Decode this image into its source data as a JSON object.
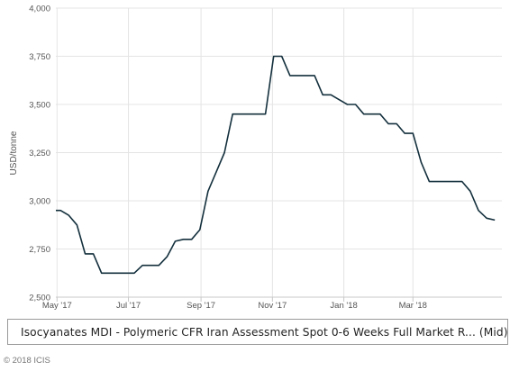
{
  "chart_data": {
    "type": "line",
    "title": "",
    "ylabel": "USD/tonne",
    "xlabel": "",
    "ylim": [
      2500,
      4000
    ],
    "yticks": [
      "2,500",
      "2,750",
      "3,000",
      "3,250",
      "3,500",
      "3,750",
      "4,000"
    ],
    "ytick_values": [
      2500,
      2750,
      3000,
      3250,
      3500,
      3750,
      4000
    ],
    "xticks": [
      "May '17",
      "Jul '17",
      "Sep '17",
      "Nov '17",
      "Jan '18",
      "Mar '18"
    ],
    "xtick_dates": [
      "2017-05-01",
      "2017-07-01",
      "2017-09-01",
      "2017-11-01",
      "2018-01-01",
      "2018-03-01"
    ],
    "xlim": [
      "2017-04-30",
      "2018-05-16"
    ],
    "grid": true,
    "series": [
      {
        "name": "Isocyanates MDI - Polymeric CFR Iran Assessment Spot 0-6 Weeks Full Market R... (Mid)",
        "color": "#14303d",
        "points": [
          [
            "2017-04-30",
            2950
          ],
          [
            "2017-05-04",
            2950
          ],
          [
            "2017-05-11",
            2925
          ],
          [
            "2017-05-18",
            2875
          ],
          [
            "2017-05-25",
            2725
          ],
          [
            "2017-06-01",
            2725
          ],
          [
            "2017-06-08",
            2625
          ],
          [
            "2017-06-15",
            2625
          ],
          [
            "2017-06-22",
            2625
          ],
          [
            "2017-06-29",
            2625
          ],
          [
            "2017-07-06",
            2625
          ],
          [
            "2017-07-13",
            2665
          ],
          [
            "2017-07-20",
            2665
          ],
          [
            "2017-07-27",
            2665
          ],
          [
            "2017-08-03",
            2710
          ],
          [
            "2017-08-10",
            2790
          ],
          [
            "2017-08-17",
            2800
          ],
          [
            "2017-08-24",
            2800
          ],
          [
            "2017-08-31",
            2850
          ],
          [
            "2017-09-07",
            3050
          ],
          [
            "2017-09-14",
            3150
          ],
          [
            "2017-09-21",
            3250
          ],
          [
            "2017-09-28",
            3450
          ],
          [
            "2017-10-05",
            3450
          ],
          [
            "2017-10-12",
            3450
          ],
          [
            "2017-10-19",
            3450
          ],
          [
            "2017-10-26",
            3450
          ],
          [
            "2017-11-02",
            3750
          ],
          [
            "2017-11-09",
            3750
          ],
          [
            "2017-11-16",
            3650
          ],
          [
            "2017-11-23",
            3650
          ],
          [
            "2017-11-30",
            3650
          ],
          [
            "2017-12-07",
            3650
          ],
          [
            "2017-12-14",
            3550
          ],
          [
            "2017-12-21",
            3550
          ],
          [
            "2017-12-28",
            3525
          ],
          [
            "2018-01-04",
            3500
          ],
          [
            "2018-01-11",
            3500
          ],
          [
            "2018-01-18",
            3450
          ],
          [
            "2018-01-25",
            3450
          ],
          [
            "2018-02-01",
            3450
          ],
          [
            "2018-02-08",
            3400
          ],
          [
            "2018-02-15",
            3400
          ],
          [
            "2018-02-22",
            3350
          ],
          [
            "2018-03-01",
            3350
          ],
          [
            "2018-03-08",
            3200
          ],
          [
            "2018-03-15",
            3100
          ],
          [
            "2018-03-22",
            3100
          ],
          [
            "2018-03-29",
            3100
          ],
          [
            "2018-04-05",
            3100
          ],
          [
            "2018-04-12",
            3100
          ],
          [
            "2018-04-19",
            3050
          ],
          [
            "2018-04-26",
            2950
          ],
          [
            "2018-05-03",
            2910
          ],
          [
            "2018-05-10",
            2900
          ]
        ]
      }
    ],
    "legend": "bottom"
  },
  "footer": {
    "copyright": "© 2018 ICIS"
  }
}
